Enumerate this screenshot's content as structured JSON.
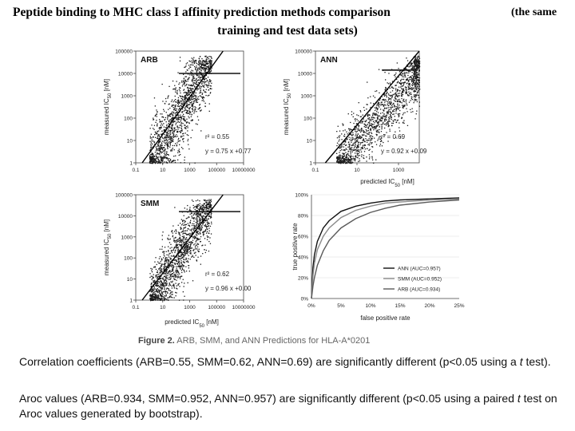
{
  "title": {
    "main": "Peptide binding to MHC class I affinity prediction methods comparison",
    "paren_start": "(the same",
    "paren_end": "training and test data sets)"
  },
  "figure": {
    "caption_label": "Figure 2.",
    "caption_text": "ARB, SMM, and ANN Predictions for HLA-A*0201",
    "scatter_y_label": "measured IC",
    "scatter_y_sub": "50",
    "scatter_y_unit": "[nM]",
    "scatter_x_label": "predicted IC",
    "scatter_x_sub": "50",
    "scatter_x_unit": "[nM]",
    "roc_x_label": "false positive rate",
    "roc_y_label": "true positive rate"
  },
  "chart_data": [
    {
      "type": "scatter",
      "panel": "ARB",
      "x_scale": "log",
      "y_scale": "log",
      "xlim": [
        0.1,
        10000000
      ],
      "ylim": [
        1,
        100000
      ],
      "x_ticks": [
        "0.1",
        "10",
        "1000",
        "100000",
        "10000000"
      ],
      "y_ticks": [
        "1",
        "10",
        "100",
        "1000",
        "10000",
        "100000"
      ],
      "r2_text": "r² = 0.55",
      "fit_text": "y = 0.75 x +0.77",
      "fit": {
        "slope": 0.75,
        "intercept": 0.77
      },
      "r2": 0.55
    },
    {
      "type": "scatter",
      "panel": "ANN",
      "x_scale": "log",
      "y_scale": "log",
      "xlim": [
        0.1,
        10000
      ],
      "ylim": [
        1,
        100000
      ],
      "x_ticks": [
        "0.1",
        "10",
        "1000"
      ],
      "y_ticks": [
        "1",
        "10",
        "100",
        "1000",
        "10000",
        "100000"
      ],
      "r2_text": "r² = 0.69",
      "fit_text": "y = 0.92 x +0.09",
      "fit": {
        "slope": 0.92,
        "intercept": 0.09
      },
      "r2": 0.69
    },
    {
      "type": "scatter",
      "panel": "SMM",
      "x_scale": "log",
      "y_scale": "log",
      "xlim": [
        0.1,
        10000000
      ],
      "ylim": [
        1,
        100000
      ],
      "x_ticks": [
        "0.1",
        "10",
        "1000",
        "100000",
        "10000000"
      ],
      "y_ticks": [
        "1",
        "10",
        "100",
        "1000",
        "10000",
        "100000"
      ],
      "r2_text": "r² = 0.62",
      "fit_text": "y = 0.96 x +0.00",
      "fit": {
        "slope": 0.96,
        "intercept": 0.0
      },
      "r2": 0.62
    },
    {
      "type": "line",
      "panel": "ROC",
      "xlim": [
        0,
        0.25
      ],
      "ylim": [
        0,
        1
      ],
      "x_ticks": [
        "0%",
        "5%",
        "10%",
        "15%",
        "20%",
        "25%"
      ],
      "y_ticks": [
        "0%",
        "20%",
        "40%",
        "60%",
        "80%",
        "100%"
      ],
      "legend_placement": "bottom-right",
      "series": [
        {
          "name": "ANN (AUC=0.957)",
          "color": "#111111",
          "x": [
            0,
            0.0025,
            0.005,
            0.01,
            0.02,
            0.03,
            0.05,
            0.075,
            0.1,
            0.125,
            0.15,
            0.2,
            0.25
          ],
          "y": [
            0,
            0.3,
            0.42,
            0.55,
            0.68,
            0.75,
            0.84,
            0.89,
            0.92,
            0.94,
            0.95,
            0.96,
            0.97
          ]
        },
        {
          "name": "SMM (AUC=0.952)",
          "color": "#8a8a8a",
          "x": [
            0,
            0.0025,
            0.005,
            0.01,
            0.02,
            0.03,
            0.05,
            0.075,
            0.1,
            0.125,
            0.15,
            0.2,
            0.25
          ],
          "y": [
            0,
            0.22,
            0.34,
            0.47,
            0.6,
            0.68,
            0.78,
            0.85,
            0.89,
            0.92,
            0.93,
            0.95,
            0.96
          ]
        },
        {
          "name": "ARB (AUC=0.934)",
          "color": "#5a5a5a",
          "x": [
            0,
            0.0025,
            0.005,
            0.01,
            0.02,
            0.03,
            0.05,
            0.075,
            0.1,
            0.125,
            0.15,
            0.2,
            0.25
          ],
          "y": [
            0,
            0.12,
            0.2,
            0.32,
            0.46,
            0.56,
            0.68,
            0.77,
            0.83,
            0.87,
            0.9,
            0.93,
            0.95
          ]
        }
      ]
    }
  ],
  "text": {
    "para1_a": "Correlation coefficients (ARB=0.55, SMM=0.62, ANN=0.69) are significantly different (p<0.05 using a ",
    "para1_t": "t",
    "para1_b": " test).",
    "para2_a": "Aroc values (ARB=0.934, SMM=0.952, ANN=0.957) are significantly different (p<0.05 using a paired ",
    "para2_t": "t",
    "para2_b": " test on Aroc values generated by bootstrap)."
  }
}
